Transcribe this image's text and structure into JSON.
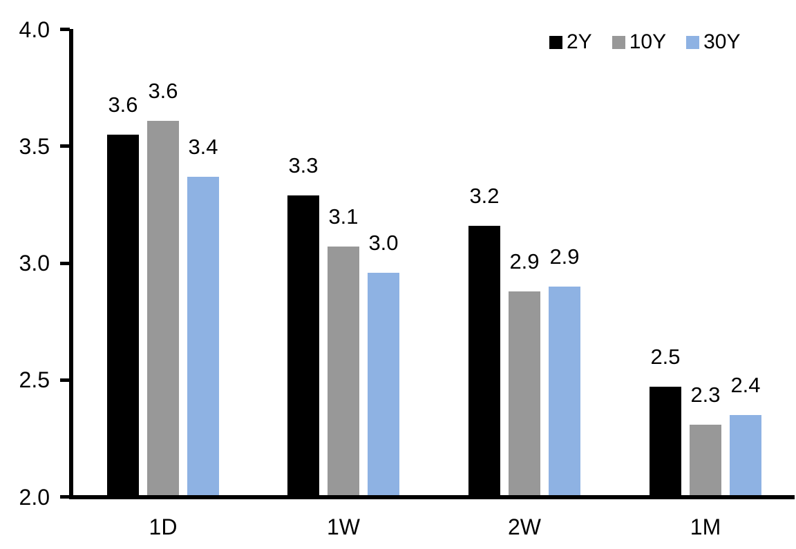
{
  "chart_data": {
    "type": "bar",
    "title": "",
    "categories": [
      "1D",
      "1W",
      "2W",
      "1M"
    ],
    "series": [
      {
        "name": "2Y",
        "color": "#000000",
        "values": [
          3.55,
          3.29,
          3.16,
          2.47
        ],
        "labels": [
          "3.6",
          "3.3",
          "3.2",
          "2.5"
        ]
      },
      {
        "name": "10Y",
        "color": "#989898",
        "values": [
          3.61,
          3.07,
          2.88,
          2.31
        ],
        "labels": [
          "3.6",
          "3.1",
          "2.9",
          "2.3"
        ]
      },
      {
        "name": "30Y",
        "color": "#8EB2E3",
        "values": [
          3.37,
          2.96,
          2.9,
          2.35
        ],
        "labels": [
          "3.4",
          "3.0",
          "2.9",
          "2.4"
        ]
      }
    ],
    "y_axis": {
      "min": 2.0,
      "max": 4.0,
      "step": 0.5,
      "tick_labels": [
        "2.0",
        "2.5",
        "3.0",
        "3.5",
        "4.0"
      ]
    },
    "legend": {
      "position": "top-right",
      "entries": [
        "2Y",
        "10Y",
        "30Y"
      ]
    },
    "grid": false,
    "data_labels": true,
    "axis_color": "#000000",
    "text_color": "#000000",
    "background_color": "#FFFFFF"
  }
}
